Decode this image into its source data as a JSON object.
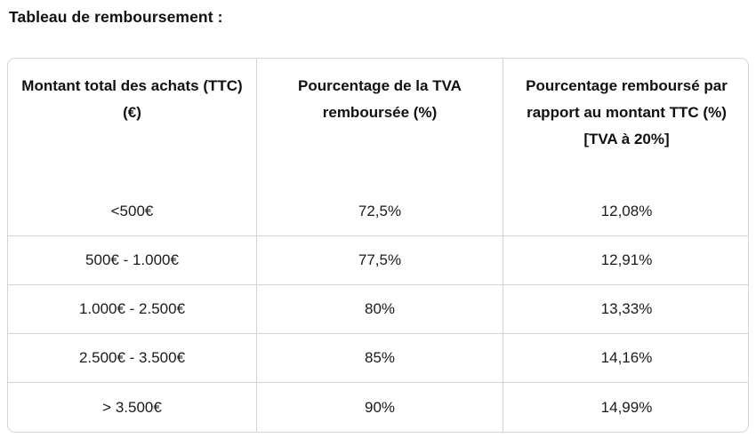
{
  "page": {
    "title": "Tableau de remboursement :"
  },
  "table": {
    "border_color": "#d4d4d4",
    "text_color": "#1a1a1a",
    "columns": [
      {
        "label": "Montant total des achats (TTC) (€)"
      },
      {
        "label": "Pourcentage de la TVA remboursée (%)"
      },
      {
        "label": "Pourcentage remboursé par rapport au montant TTC (%)\n[TVA à 20%]"
      }
    ],
    "rows": [
      {
        "amount": "<500€",
        "vat_refunded": "72,5%",
        "ttc_refunded": "12,08%"
      },
      {
        "amount": "500€ - 1.000€",
        "vat_refunded": "77,5%",
        "ttc_refunded": "12,91%"
      },
      {
        "amount": "1.000€ - 2.500€",
        "vat_refunded": "80%",
        "ttc_refunded": "13,33%"
      },
      {
        "amount": "2.500€ - 3.500€",
        "vat_refunded": "85%",
        "ttc_refunded": "14,16%"
      },
      {
        "amount": "> 3.500€",
        "vat_refunded": "90%",
        "ttc_refunded": "14,99%"
      }
    ]
  }
}
